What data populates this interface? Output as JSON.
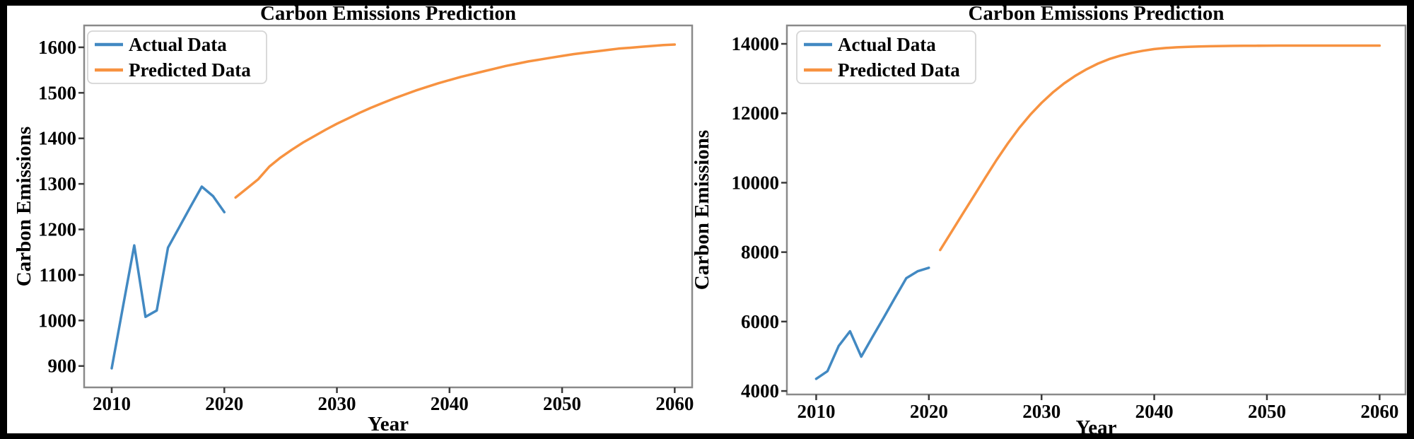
{
  "figure": {
    "background": "#000000",
    "panel_background": "#ffffff",
    "spine_color": "#8a8a8a",
    "tick_color": "#3a3a3a",
    "legend_border_color": "#d5d5d5"
  },
  "chart_data": [
    {
      "type": "line",
      "title": "Carbon Emissions Prediction",
      "xlabel": "Year",
      "ylabel": "Carbon Emissions",
      "xlim": [
        2007.55,
        2061.55
      ],
      "ylim": [
        853,
        1648
      ],
      "xticks": [
        2010,
        2020,
        2030,
        2040,
        2050,
        2060
      ],
      "yticks": [
        900,
        1000,
        1100,
        1200,
        1300,
        1400,
        1500,
        1600
      ],
      "grid": false,
      "legend_position": "upper left",
      "legend": [
        "Actual Data",
        "Predicted Data"
      ],
      "series": [
        {
          "name": "Actual Data",
          "color": "#4289c2",
          "x": [
            2010,
            2011,
            2012,
            2013,
            2014,
            2015,
            2016,
            2017,
            2018,
            2019,
            2020
          ],
          "y": [
            895,
            1030,
            1165,
            1008,
            1022,
            1160,
            1205,
            1250,
            1294,
            1273,
            1238
          ]
        },
        {
          "name": "Predicted Data",
          "color": "#f79240",
          "x": [
            2021,
            2022,
            2023,
            2024,
            2025,
            2026,
            2027,
            2028,
            2029,
            2030,
            2031,
            2032,
            2033,
            2034,
            2035,
            2036,
            2037,
            2038,
            2039,
            2040,
            2041,
            2042,
            2043,
            2044,
            2045,
            2046,
            2047,
            2048,
            2049,
            2050,
            2051,
            2052,
            2053,
            2054,
            2055,
            2056,
            2057,
            2058,
            2059,
            2060
          ],
          "y": [
            1270,
            1290,
            1310,
            1338,
            1358,
            1375,
            1391,
            1405,
            1419,
            1432,
            1444,
            1456,
            1467,
            1477,
            1487,
            1496,
            1505,
            1513,
            1521,
            1528,
            1535,
            1541,
            1547,
            1553,
            1559,
            1564,
            1569,
            1573,
            1577,
            1581,
            1585,
            1588,
            1591,
            1594,
            1597,
            1599,
            1601,
            1603,
            1605,
            1606
          ]
        }
      ]
    },
    {
      "type": "line",
      "title": "Carbon Emissions Prediction",
      "xlabel": "Year",
      "ylabel": "Carbon Emissions",
      "xlim": [
        2007.4,
        2062.3
      ],
      "ylim": [
        3900,
        14530
      ],
      "xticks": [
        2010,
        2020,
        2030,
        2040,
        2050,
        2060
      ],
      "yticks": [
        4000,
        6000,
        8000,
        10000,
        12000,
        14000
      ],
      "grid": false,
      "legend_position": "upper left",
      "legend": [
        "Actual Data",
        "Predicted Data"
      ],
      "series": [
        {
          "name": "Actual Data",
          "color": "#4289c2",
          "x": [
            2010,
            2011,
            2012,
            2013,
            2014,
            2015,
            2016,
            2017,
            2018,
            2019,
            2020
          ],
          "y": [
            4350,
            4570,
            5300,
            5720,
            4990,
            5560,
            6120,
            6690,
            7250,
            7450,
            7550
          ]
        },
        {
          "name": "Predicted Data",
          "color": "#f79240",
          "x": [
            2021,
            2022,
            2023,
            2024,
            2025,
            2026,
            2027,
            2028,
            2029,
            2030,
            2031,
            2032,
            2033,
            2034,
            2035,
            2036,
            2037,
            2038,
            2039,
            2040,
            2041,
            2042,
            2043,
            2044,
            2045,
            2046,
            2047,
            2048,
            2049,
            2050,
            2051,
            2052,
            2053,
            2054,
            2055,
            2056,
            2057,
            2058,
            2059,
            2060
          ],
          "y": [
            8060,
            8580,
            9100,
            9620,
            10140,
            10650,
            11130,
            11570,
            11960,
            12300,
            12600,
            12860,
            13080,
            13270,
            13430,
            13560,
            13660,
            13740,
            13800,
            13850,
            13880,
            13900,
            13915,
            13925,
            13932,
            13938,
            13941,
            13944,
            13946,
            13948,
            13949,
            13950,
            13950,
            13950,
            13950,
            13950,
            13950,
            13950,
            13950,
            13950
          ]
        }
      ]
    }
  ]
}
